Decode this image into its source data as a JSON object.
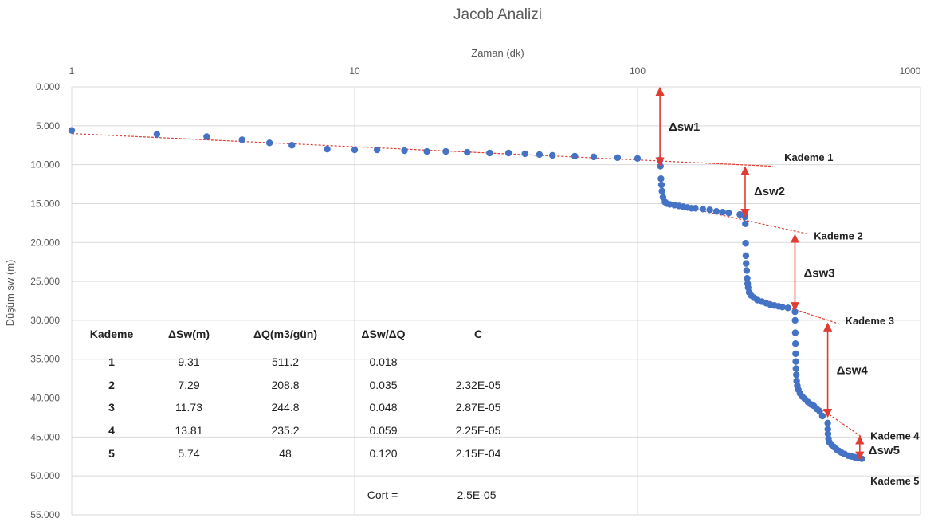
{
  "chart_data": {
    "type": "scatter",
    "title": "Jacob Analizi",
    "xlabel": "Zaman (dk)",
    "ylabel": "Düşüm sw (m)",
    "xscale": "log",
    "xlim": [
      1,
      1000
    ],
    "ylim": [
      0,
      55
    ],
    "y_inverted": true,
    "x_axis_position": "top",
    "x_tick_labels": [
      "1",
      "10",
      "100",
      "1000"
    ],
    "y_tick_labels": [
      "0.000",
      "5.000",
      "10.000",
      "15.000",
      "20.000",
      "25.000",
      "30.000",
      "35.000",
      "40.000",
      "45.000",
      "50.000",
      "55.000"
    ],
    "grid": true,
    "marker_color": "#4472C4",
    "fit_line_color": "#E03C31",
    "arrow_color": "#E03C31",
    "points": [
      [
        1,
        5.6
      ],
      [
        2,
        6.1
      ],
      [
        3,
        6.4
      ],
      [
        4,
        6.8
      ],
      [
        5,
        7.2
      ],
      [
        6,
        7.5
      ],
      [
        8,
        8.0
      ],
      [
        10,
        8.1
      ],
      [
        12,
        8.1
      ],
      [
        15,
        8.2
      ],
      [
        18,
        8.3
      ],
      [
        21,
        8.3
      ],
      [
        25,
        8.4
      ],
      [
        30,
        8.5
      ],
      [
        35,
        8.5
      ],
      [
        40,
        8.6
      ],
      [
        45,
        8.7
      ],
      [
        50,
        8.8
      ],
      [
        60,
        8.9
      ],
      [
        70,
        9.0
      ],
      [
        85,
        9.1
      ],
      [
        100,
        9.2
      ],
      [
        120,
        9.4
      ],
      [
        120.5,
        10.2
      ],
      [
        121,
        11.8
      ],
      [
        121.5,
        12.6
      ],
      [
        122,
        13.4
      ],
      [
        123,
        14.2
      ],
      [
        125,
        14.8
      ],
      [
        127,
        15.0
      ],
      [
        130,
        15.1
      ],
      [
        135,
        15.2
      ],
      [
        140,
        15.3
      ],
      [
        145,
        15.4
      ],
      [
        150,
        15.5
      ],
      [
        155,
        15.6
      ],
      [
        160,
        15.6
      ],
      [
        170,
        15.7
      ],
      [
        180,
        15.8
      ],
      [
        190,
        16.0
      ],
      [
        200,
        16.1
      ],
      [
        210,
        16.2
      ],
      [
        230,
        16.4
      ],
      [
        240,
        16.7
      ],
      [
        240.5,
        17.6
      ],
      [
        241,
        20.1
      ],
      [
        241.5,
        21.7
      ],
      [
        242,
        22.7
      ],
      [
        243,
        23.6
      ],
      [
        244,
        24.6
      ],
      [
        245,
        25.3
      ],
      [
        246,
        25.8
      ],
      [
        248,
        26.4
      ],
      [
        252,
        26.8
      ],
      [
        258,
        27.1
      ],
      [
        265,
        27.4
      ],
      [
        275,
        27.6
      ],
      [
        285,
        27.8
      ],
      [
        295,
        28.0
      ],
      [
        305,
        28.1
      ],
      [
        315,
        28.2
      ],
      [
        325,
        28.3
      ],
      [
        340,
        28.4
      ],
      [
        360,
        28.9
      ],
      [
        360.5,
        30.0
      ],
      [
        361,
        31.6
      ],
      [
        361.5,
        33.0
      ],
      [
        362,
        34.3
      ],
      [
        362.5,
        35.3
      ],
      [
        363,
        36.2
      ],
      [
        364,
        37.0
      ],
      [
        365,
        37.8
      ],
      [
        367,
        38.4
      ],
      [
        370,
        38.9
      ],
      [
        375,
        39.4
      ],
      [
        382,
        39.8
      ],
      [
        390,
        40.1
      ],
      [
        400,
        40.5
      ],
      [
        410,
        40.8
      ],
      [
        420,
        41.0
      ],
      [
        430,
        41.4
      ],
      [
        440,
        41.7
      ],
      [
        450,
        42.3
      ],
      [
        470,
        43.2
      ],
      [
        470.5,
        44.0
      ],
      [
        471,
        44.6
      ],
      [
        473,
        45.2
      ],
      [
        477,
        45.7
      ],
      [
        485,
        46.0
      ],
      [
        495,
        46.3
      ],
      [
        505,
        46.6
      ],
      [
        515,
        46.8
      ],
      [
        525,
        47.0
      ],
      [
        540,
        47.2
      ],
      [
        555,
        47.4
      ],
      [
        570,
        47.5
      ],
      [
        585,
        47.6
      ],
      [
        600,
        47.7
      ],
      [
        620,
        47.8
      ]
    ],
    "fit_lines": [
      {
        "x": [
          1,
          300
        ],
        "y": [
          6.0,
          10.2
        ]
      },
      {
        "x": [
          125,
          400
        ],
        "y": [
          14.9,
          18.9
        ]
      },
      {
        "x": [
          243,
          520
        ],
        "y": [
          26.6,
          30.5
        ]
      },
      {
        "x": [
          365,
          620
        ],
        "y": [
          39.2,
          45.0
        ]
      },
      {
        "x": [
          480,
          620
        ],
        "y": [
          45.9,
          48.0
        ]
      }
    ],
    "step_labels": [
      {
        "text": "Kademe 1",
        "x": 330,
        "y": 9.0
      },
      {
        "text": "Kademe 2",
        "x": 420,
        "y": 19.1
      },
      {
        "text": "Kademe 3",
        "x": 542,
        "y": 30.0
      },
      {
        "text": "Kademe 4",
        "x": 665,
        "y": 44.8
      },
      {
        "text": "Kademe 5",
        "x": 665,
        "y": 50.6
      }
    ],
    "drawdown_arrows": [
      {
        "label": "Δsw1",
        "x": 120,
        "y": [
          0,
          10.2
        ],
        "label_y": 5.0
      },
      {
        "label": "Δsw2",
        "x": 240,
        "y": [
          10.2,
          16.8
        ],
        "label_y": 13.3
      },
      {
        "label": "Δsw3",
        "x": 360,
        "y": [
          18.9,
          28.8
        ],
        "label_y": 23.8
      },
      {
        "label": "Δsw4",
        "x": 470,
        "y": [
          30.3,
          42.5
        ],
        "label_y": 36.3
      },
      {
        "label": "Δsw5",
        "x": 610,
        "y": [
          44.8,
          48.0
        ],
        "label_y": 46.6
      }
    ],
    "table": {
      "headers": [
        "Kademe",
        "ΔSw(m)",
        "ΔQ(m3/gün)",
        "ΔSw/ΔQ",
        "C"
      ],
      "rows": [
        [
          "1",
          "9.31",
          "511.2",
          "0.018",
          ""
        ],
        [
          "2",
          "7.29",
          "208.8",
          "0.035",
          "2.32E-05"
        ],
        [
          "3",
          "11.73",
          "244.8",
          "0.048",
          "2.87E-05"
        ],
        [
          "4",
          "13.81",
          "235.2",
          "0.059",
          "2.25E-05"
        ],
        [
          "5",
          "5.74",
          "48",
          "0.120",
          "2.15E-04"
        ]
      ],
      "cort_label": "Cort =",
      "cort_value": "2.5E-05"
    }
  }
}
